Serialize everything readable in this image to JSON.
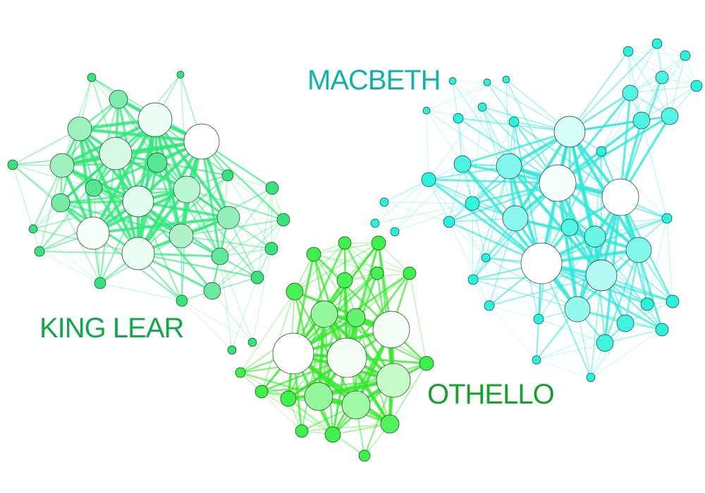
{
  "networks": [
    {
      "id": "king-lear",
      "label": "KING LEAR",
      "label_color": "#10a848",
      "edge_color": "#2ee87a",
      "node_stroke": "#1b3a26",
      "small_node_color": "#3ae27e",
      "large_node_color": "#ffffff"
    },
    {
      "id": "macbeth",
      "label": "MACBETH",
      "label_color": "#12b3a6",
      "edge_color": "#2ee8d8",
      "node_stroke": "#1b3a36",
      "small_node_color": "#2af2dc",
      "large_node_color": "#ffffff"
    },
    {
      "id": "othello",
      "label": "OTHELLO",
      "label_color": "#18a02c",
      "edge_color": "#33e82a",
      "node_stroke": "#1b3a1e",
      "small_node_color": "#3ef04a",
      "large_node_color": "#ffffff"
    }
  ]
}
